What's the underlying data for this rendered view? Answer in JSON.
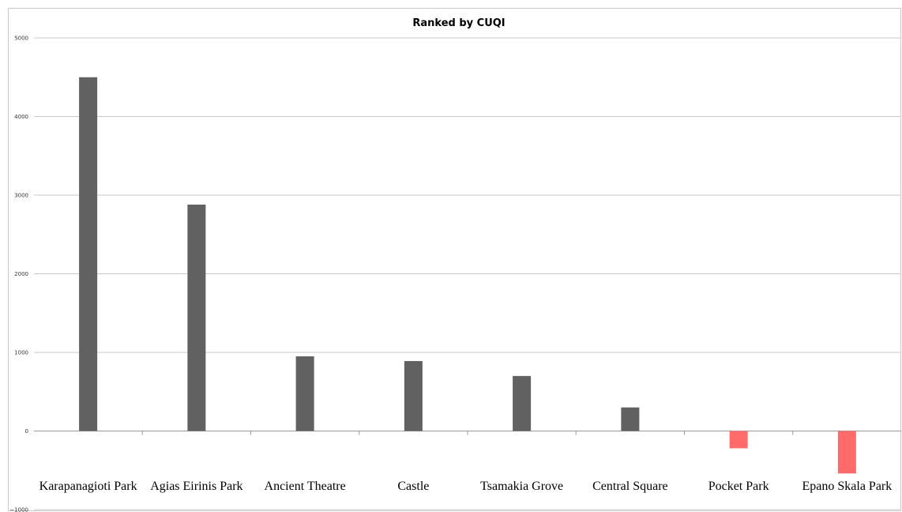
{
  "chart_data": {
    "type": "bar",
    "title": "Ranked by CUQI",
    "xlabel": "",
    "ylabel": "",
    "ylim": [
      -1000,
      5000
    ],
    "yticks": [
      -1000,
      0,
      1000,
      2000,
      3000,
      4000,
      5000
    ],
    "grid": true,
    "legend": "none",
    "categories": [
      "Karapanagioti Park",
      "Agias Eirinis Park",
      "Ancient Theatre",
      "Castle",
      "Tsamakia Grove",
      "Central Square",
      "Pocket Park",
      "Epano Skala Park"
    ],
    "series": [
      {
        "values": [
          4500,
          2880,
          950,
          890,
          700,
          300,
          -220,
          -540
        ]
      }
    ],
    "colors": {
      "positive": "#616161",
      "negative": "#ff6b6b"
    }
  }
}
